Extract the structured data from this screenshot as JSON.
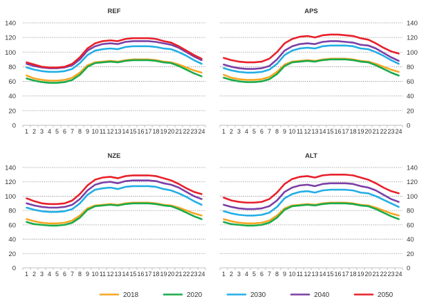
{
  "colors": {
    "2018": "#f5a623",
    "2020": "#1aaa4b",
    "2030": "#22aee5",
    "2040": "#7b3fa6",
    "2050": "#e8202a",
    "grid": "#7f7f7f",
    "axis": "#bfbfbf"
  },
  "legend": [
    {
      "key": "2018",
      "label": "2018"
    },
    {
      "key": "2020",
      "label": "2020"
    },
    {
      "key": "2030",
      "label": "2030"
    },
    {
      "key": "2040",
      "label": "2040"
    },
    {
      "key": "2050",
      "label": "2050"
    }
  ],
  "chart_data": [
    {
      "type": "line",
      "title": "REF",
      "ylabel_side": "left",
      "x": [
        1,
        2,
        3,
        4,
        5,
        6,
        7,
        8,
        9,
        10,
        11,
        12,
        13,
        14,
        15,
        16,
        17,
        18,
        19,
        20,
        21,
        22,
        23,
        24
      ],
      "ylim": [
        0,
        140
      ],
      "yticks": [
        0,
        20,
        40,
        60,
        80,
        100,
        120,
        140
      ],
      "grid": true,
      "series": [
        {
          "name": "2018",
          "values": [
            68,
            64,
            62,
            61,
            61,
            62,
            65,
            72,
            82,
            86,
            87,
            88,
            87,
            89,
            90,
            90,
            90,
            89,
            87,
            86,
            83,
            79,
            75,
            72
          ]
        },
        {
          "name": "2020",
          "values": [
            64,
            61,
            59,
            58,
            58,
            59,
            62,
            69,
            80,
            85,
            86,
            87,
            86,
            88,
            89,
            89,
            89,
            88,
            86,
            85,
            81,
            76,
            71,
            67
          ]
        },
        {
          "name": "2030",
          "values": [
            79,
            76,
            74,
            73,
            73,
            74,
            77,
            85,
            96,
            102,
            104,
            105,
            104,
            107,
            108,
            108,
            108,
            107,
            105,
            104,
            100,
            95,
            89,
            84
          ]
        },
        {
          "name": "2040",
          "values": [
            84,
            81,
            79,
            78,
            78,
            79,
            82,
            90,
            102,
            108,
            111,
            112,
            111,
            114,
            115,
            115,
            115,
            114,
            112,
            110,
            106,
            100,
            94,
            89
          ]
        },
        {
          "name": "2050",
          "values": [
            86,
            83,
            80,
            79,
            79,
            80,
            84,
            93,
            105,
            112,
            115,
            116,
            115,
            118,
            119,
            119,
            119,
            118,
            115,
            113,
            108,
            102,
            96,
            91
          ]
        }
      ]
    },
    {
      "type": "line",
      "title": "APS",
      "ylabel_side": "right",
      "x": [
        1,
        2,
        3,
        4,
        5,
        6,
        7,
        8,
        9,
        10,
        11,
        12,
        13,
        14,
        15,
        16,
        17,
        18,
        19,
        20,
        21,
        22,
        23,
        24
      ],
      "ylim": [
        0,
        140
      ],
      "yticks": [
        0,
        20,
        40,
        60,
        80,
        100,
        120,
        140
      ],
      "grid": true,
      "series": [
        {
          "name": "2018",
          "values": [
            69,
            65,
            63,
            62,
            62,
            63,
            66,
            73,
            83,
            87,
            88,
            89,
            88,
            90,
            91,
            91,
            91,
            90,
            88,
            87,
            84,
            80,
            76,
            73
          ]
        },
        {
          "name": "2020",
          "values": [
            65,
            62,
            60,
            59,
            59,
            60,
            63,
            70,
            81,
            86,
            87,
            88,
            87,
            89,
            90,
            90,
            90,
            89,
            87,
            86,
            82,
            77,
            72,
            68
          ]
        },
        {
          "name": "2030",
          "values": [
            78,
            75,
            73,
            72,
            72,
            73,
            76,
            84,
            96,
            102,
            105,
            106,
            105,
            108,
            109,
            109,
            109,
            108,
            105,
            104,
            100,
            95,
            89,
            84
          ]
        },
        {
          "name": "2040",
          "values": [
            83,
            80,
            78,
            77,
            77,
            78,
            81,
            90,
            102,
            108,
            111,
            112,
            111,
            114,
            115,
            115,
            114,
            113,
            110,
            109,
            105,
            99,
            93,
            88
          ]
        },
        {
          "name": "2050",
          "values": [
            92,
            89,
            87,
            86,
            86,
            87,
            91,
            100,
            112,
            118,
            121,
            122,
            120,
            123,
            124,
            124,
            123,
            122,
            119,
            117,
            112,
            106,
            101,
            98
          ]
        }
      ]
    },
    {
      "type": "line",
      "title": "NZE",
      "ylabel_side": "left",
      "x": [
        1,
        2,
        3,
        4,
        5,
        6,
        7,
        8,
        9,
        10,
        11,
        12,
        13,
        14,
        15,
        16,
        17,
        18,
        19,
        20,
        21,
        22,
        23,
        24
      ],
      "ylim": [
        0,
        140
      ],
      "yticks": [
        0,
        20,
        40,
        60,
        80,
        100,
        120,
        140
      ],
      "grid": true,
      "series": [
        {
          "name": "2018",
          "values": [
            68,
            65,
            63,
            62,
            62,
            63,
            66,
            73,
            83,
            87,
            88,
            89,
            88,
            90,
            91,
            91,
            91,
            90,
            88,
            87,
            84,
            80,
            76,
            73
          ]
        },
        {
          "name": "2020",
          "values": [
            64,
            61,
            60,
            59,
            59,
            60,
            63,
            70,
            81,
            86,
            87,
            88,
            87,
            89,
            90,
            90,
            90,
            89,
            87,
            86,
            82,
            77,
            72,
            68
          ]
        },
        {
          "name": "2030",
          "values": [
            84,
            81,
            79,
            78,
            78,
            79,
            82,
            90,
            102,
            109,
            111,
            112,
            110,
            113,
            114,
            114,
            114,
            113,
            110,
            108,
            104,
            99,
            93,
            88
          ]
        },
        {
          "name": "2040",
          "values": [
            90,
            87,
            85,
            84,
            84,
            85,
            88,
            96,
            108,
            116,
            119,
            120,
            118,
            121,
            122,
            122,
            122,
            121,
            118,
            116,
            112,
            106,
            100,
            96
          ]
        },
        {
          "name": "2050",
          "values": [
            97,
            93,
            90,
            89,
            89,
            90,
            94,
            103,
            115,
            123,
            126,
            127,
            125,
            128,
            129,
            129,
            129,
            128,
            125,
            122,
            117,
            111,
            106,
            103
          ]
        }
      ]
    },
    {
      "type": "line",
      "title": "ALT",
      "ylabel_side": "right",
      "x": [
        1,
        2,
        3,
        4,
        5,
        6,
        7,
        8,
        9,
        10,
        11,
        12,
        13,
        14,
        15,
        16,
        17,
        18,
        19,
        20,
        21,
        22,
        23,
        24
      ],
      "ylim": [
        0,
        140
      ],
      "yticks": [
        0,
        20,
        40,
        60,
        80,
        100,
        120,
        140
      ],
      "grid": true,
      "series": [
        {
          "name": "2018",
          "values": [
            68,
            65,
            63,
            62,
            62,
            63,
            66,
            73,
            83,
            87,
            88,
            89,
            88,
            90,
            91,
            91,
            91,
            90,
            88,
            87,
            84,
            80,
            76,
            73
          ]
        },
        {
          "name": "2020",
          "values": [
            64,
            61,
            60,
            59,
            59,
            60,
            63,
            70,
            81,
            86,
            87,
            88,
            87,
            89,
            90,
            90,
            90,
            89,
            87,
            86,
            82,
            77,
            72,
            68
          ]
        },
        {
          "name": "2030",
          "values": [
            79,
            76,
            74,
            73,
            73,
            74,
            77,
            85,
            97,
            103,
            106,
            107,
            105,
            108,
            109,
            109,
            109,
            108,
            105,
            104,
            100,
            95,
            90,
            85
          ]
        },
        {
          "name": "2040",
          "values": [
            88,
            85,
            83,
            82,
            82,
            83,
            86,
            94,
            106,
            112,
            115,
            116,
            114,
            117,
            118,
            118,
            118,
            117,
            114,
            112,
            108,
            102,
            96,
            92
          ]
        },
        {
          "name": "2050",
          "values": [
            98,
            94,
            92,
            91,
            91,
            92,
            96,
            105,
            117,
            124,
            127,
            128,
            126,
            129,
            130,
            130,
            130,
            129,
            126,
            123,
            118,
            112,
            107,
            104
          ]
        }
      ]
    }
  ]
}
